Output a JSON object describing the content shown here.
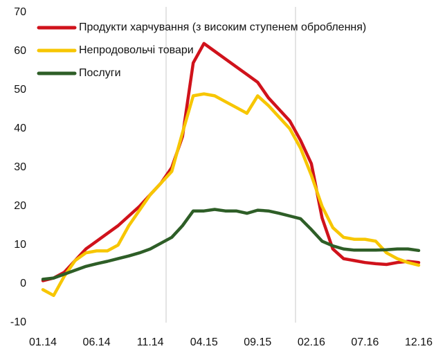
{
  "chart_data": {
    "type": "line",
    "categories": [
      "01.14",
      null,
      null,
      null,
      null,
      "06.14",
      null,
      null,
      null,
      null,
      "11.14",
      null,
      null,
      null,
      null,
      "04.15",
      null,
      null,
      null,
      null,
      "09.15",
      null,
      null,
      null,
      null,
      "02.16",
      null,
      null,
      null,
      null,
      "07.16",
      null,
      null,
      null,
      null,
      "12.16"
    ],
    "series": [
      {
        "name": "Продукти харчування (з високим ступенем оброблення)",
        "color": "#d0121b",
        "values": [
          0.8,
          1.5,
          3,
          6,
          9,
          11,
          13,
          15,
          17.5,
          20,
          23,
          26,
          30,
          38,
          57,
          62,
          60,
          58,
          56,
          54,
          52,
          48,
          45,
          42,
          37,
          31,
          17,
          9,
          6.5,
          6,
          5.5,
          5.2,
          5,
          5.5,
          5.8,
          5.5
        ]
      },
      {
        "name": "Непродовольчі товари",
        "color": "#f7c600",
        "values": [
          -1.5,
          -3,
          2,
          6,
          8,
          8.5,
          8.5,
          10,
          15,
          19,
          23,
          26,
          29,
          39,
          48.5,
          49,
          48.5,
          47,
          45.5,
          44,
          48.5,
          46,
          43,
          40,
          35,
          28,
          20,
          14.5,
          12,
          11.5,
          11.5,
          11,
          8,
          6.5,
          5.5,
          4.8
        ]
      },
      {
        "name": "Послуги",
        "color": "#2e5e27",
        "values": [
          1.2,
          1.5,
          2.5,
          3.5,
          4.5,
          5.2,
          5.8,
          6.5,
          7.2,
          8,
          9,
          10.5,
          12,
          15,
          18.8,
          18.8,
          19.2,
          18.8,
          18.8,
          18.2,
          19,
          18.8,
          18.2,
          17.5,
          16.8,
          14,
          11,
          9.8,
          9,
          8.7,
          8.7,
          8.7,
          8.8,
          9,
          9,
          8.6
        ]
      }
    ],
    "ylim": [
      -10,
      70
    ],
    "yticks": [
      -10,
      0,
      10,
      20,
      30,
      40,
      50,
      60,
      70
    ]
  }
}
